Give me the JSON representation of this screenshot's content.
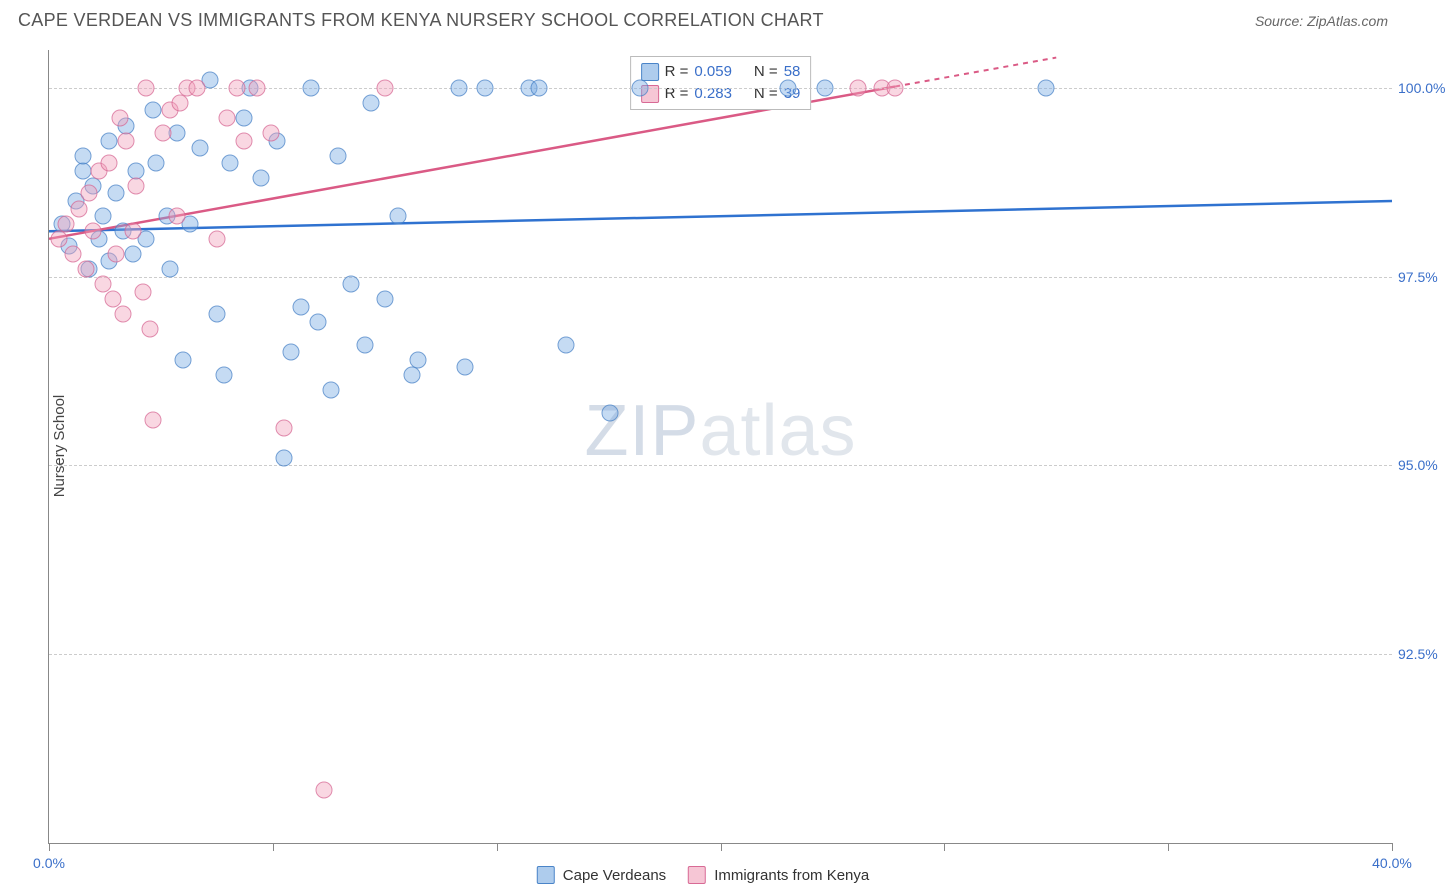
{
  "title": "CAPE VERDEAN VS IMMIGRANTS FROM KENYA NURSERY SCHOOL CORRELATION CHART",
  "source": "Source: ZipAtlas.com",
  "y_axis_label": "Nursery School",
  "watermark": {
    "zip": "ZIP",
    "atlas": "atlas"
  },
  "chart": {
    "type": "scatter",
    "xlim": [
      0.0,
      40.0
    ],
    "ylim": [
      90.0,
      100.5
    ],
    "y_ticks": [
      92.5,
      95.0,
      97.5,
      100.0
    ],
    "y_tick_labels": [
      "92.5%",
      "95.0%",
      "97.5%",
      "100.0%"
    ],
    "x_ticks": [
      0.0,
      6.67,
      13.33,
      20.0,
      26.67,
      33.33,
      40.0
    ],
    "x_tick_labels": [
      "0.0%",
      "",
      "",
      "",
      "",
      "",
      "40.0%"
    ],
    "grid_color": "#cccccc",
    "axis_color": "#888888",
    "background_color": "#ffffff",
    "marker_size": 17,
    "marker_opacity": 0.78
  },
  "series": [
    {
      "name": "Cape Verdeans",
      "color_fill": "rgba(120,170,225,0.55)",
      "color_stroke": "#4a84c8",
      "R": "0.059",
      "N": "58",
      "trend": {
        "x1": 0.0,
        "y1": 98.1,
        "x2": 40.0,
        "y2": 98.5,
        "color": "#2f72d0",
        "width": 2.5,
        "dash_after_x": 40.0
      },
      "points": [
        [
          0.4,
          98.2
        ],
        [
          0.6,
          97.9
        ],
        [
          0.8,
          98.5
        ],
        [
          1.0,
          98.9
        ],
        [
          1.0,
          99.1
        ],
        [
          1.2,
          97.6
        ],
        [
          1.3,
          98.7
        ],
        [
          1.5,
          98.0
        ],
        [
          1.6,
          98.3
        ],
        [
          1.8,
          99.3
        ],
        [
          1.8,
          97.7
        ],
        [
          2.0,
          98.6
        ],
        [
          2.2,
          98.1
        ],
        [
          2.3,
          99.5
        ],
        [
          2.5,
          97.8
        ],
        [
          2.6,
          98.9
        ],
        [
          2.9,
          98.0
        ],
        [
          3.1,
          99.7
        ],
        [
          3.2,
          99.0
        ],
        [
          3.5,
          98.3
        ],
        [
          3.6,
          97.6
        ],
        [
          3.8,
          99.4
        ],
        [
          4.0,
          96.4
        ],
        [
          4.2,
          98.2
        ],
        [
          4.5,
          99.2
        ],
        [
          4.8,
          100.1
        ],
        [
          5.0,
          97.0
        ],
        [
          5.2,
          96.2
        ],
        [
          5.4,
          99.0
        ],
        [
          5.8,
          99.6
        ],
        [
          6.0,
          100.0
        ],
        [
          6.3,
          98.8
        ],
        [
          6.8,
          99.3
        ],
        [
          7.0,
          95.1
        ],
        [
          7.2,
          96.5
        ],
        [
          7.5,
          97.1
        ],
        [
          7.8,
          100.0
        ],
        [
          8.0,
          96.9
        ],
        [
          8.4,
          96.0
        ],
        [
          8.6,
          99.1
        ],
        [
          9.0,
          97.4
        ],
        [
          9.4,
          96.6
        ],
        [
          9.6,
          99.8
        ],
        [
          10.0,
          97.2
        ],
        [
          10.4,
          98.3
        ],
        [
          10.8,
          96.2
        ],
        [
          11.0,
          96.4
        ],
        [
          12.2,
          100.0
        ],
        [
          12.4,
          96.3
        ],
        [
          13.0,
          100.0
        ],
        [
          14.3,
          100.0
        ],
        [
          14.6,
          100.0
        ],
        [
          15.4,
          96.6
        ],
        [
          16.7,
          95.7
        ],
        [
          17.6,
          100.0
        ],
        [
          22.0,
          100.0
        ],
        [
          23.1,
          100.0
        ],
        [
          29.7,
          100.0
        ]
      ]
    },
    {
      "name": "Immigrants from Kenya",
      "color_fill": "rgba(240,160,185,0.55)",
      "color_stroke": "#d86a95",
      "R": "0.283",
      "N": "39",
      "trend": {
        "x1": 0.0,
        "y1": 98.0,
        "x2": 30.0,
        "y2": 100.4,
        "color": "#da5a85",
        "width": 2.5,
        "dash_after_x": 25.2
      },
      "points": [
        [
          0.3,
          98.0
        ],
        [
          0.5,
          98.2
        ],
        [
          0.7,
          97.8
        ],
        [
          0.9,
          98.4
        ],
        [
          1.1,
          97.6
        ],
        [
          1.2,
          98.6
        ],
        [
          1.3,
          98.1
        ],
        [
          1.5,
          98.9
        ],
        [
          1.6,
          97.4
        ],
        [
          1.8,
          99.0
        ],
        [
          1.9,
          97.2
        ],
        [
          2.0,
          97.8
        ],
        [
          2.1,
          99.6
        ],
        [
          2.2,
          97.0
        ],
        [
          2.3,
          99.3
        ],
        [
          2.5,
          98.1
        ],
        [
          2.6,
          98.7
        ],
        [
          2.8,
          97.3
        ],
        [
          2.9,
          100.0
        ],
        [
          3.0,
          96.8
        ],
        [
          3.1,
          95.6
        ],
        [
          3.4,
          99.4
        ],
        [
          3.6,
          99.7
        ],
        [
          3.8,
          98.3
        ],
        [
          3.9,
          99.8
        ],
        [
          4.1,
          100.0
        ],
        [
          4.4,
          100.0
        ],
        [
          5.0,
          98.0
        ],
        [
          5.3,
          99.6
        ],
        [
          5.6,
          100.0
        ],
        [
          5.8,
          99.3
        ],
        [
          6.2,
          100.0
        ],
        [
          6.6,
          99.4
        ],
        [
          7.0,
          95.5
        ],
        [
          8.2,
          90.7
        ],
        [
          10.0,
          100.0
        ],
        [
          24.1,
          100.0
        ],
        [
          24.8,
          100.0
        ],
        [
          25.2,
          100.0
        ]
      ]
    }
  ],
  "legend_top": {
    "rows": [
      {
        "sw": "blue",
        "r_label": "R =",
        "r_val": "0.059",
        "n_label": "N =",
        "n_val": "58"
      },
      {
        "sw": "pink",
        "r_label": "R =",
        "r_val": "0.283",
        "n_label": "N =",
        "n_val": "39"
      }
    ]
  },
  "legend_bottom": {
    "items": [
      {
        "sw": "blue",
        "label": "Cape Verdeans"
      },
      {
        "sw": "pink",
        "label": "Immigrants from Kenya"
      }
    ]
  }
}
